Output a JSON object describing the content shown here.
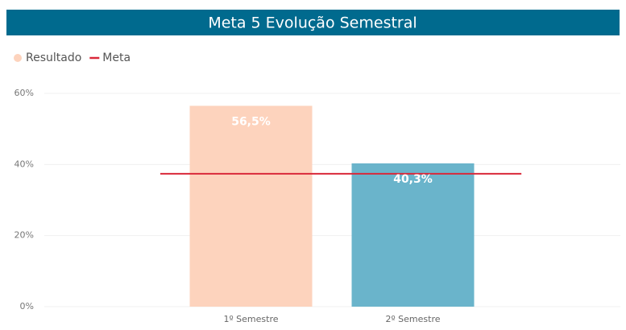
{
  "chart_data": {
    "type": "bar",
    "title": "Meta 5 Evolução Semestral",
    "categories": [
      "1º Semestre",
      "2º Semestre"
    ],
    "series": [
      {
        "name": "Resultado",
        "type": "bar",
        "colors": [
          "#fdd3bd",
          "#6ab4cb"
        ],
        "values": [
          56.5,
          40.3
        ],
        "value_labels": [
          "56,5%",
          "40,3%"
        ]
      },
      {
        "name": "Meta",
        "type": "line",
        "color": "#d9283a",
        "values": [
          37.4,
          37.4
        ]
      }
    ],
    "ylim": [
      0,
      60
    ],
    "yticks": [
      {
        "value": 0,
        "label": "0%"
      },
      {
        "value": 20,
        "label": "20%"
      },
      {
        "value": 40,
        "label": "40%"
      },
      {
        "value": 60,
        "label": "60%"
      }
    ],
    "grid": true,
    "legend": "top-left"
  }
}
